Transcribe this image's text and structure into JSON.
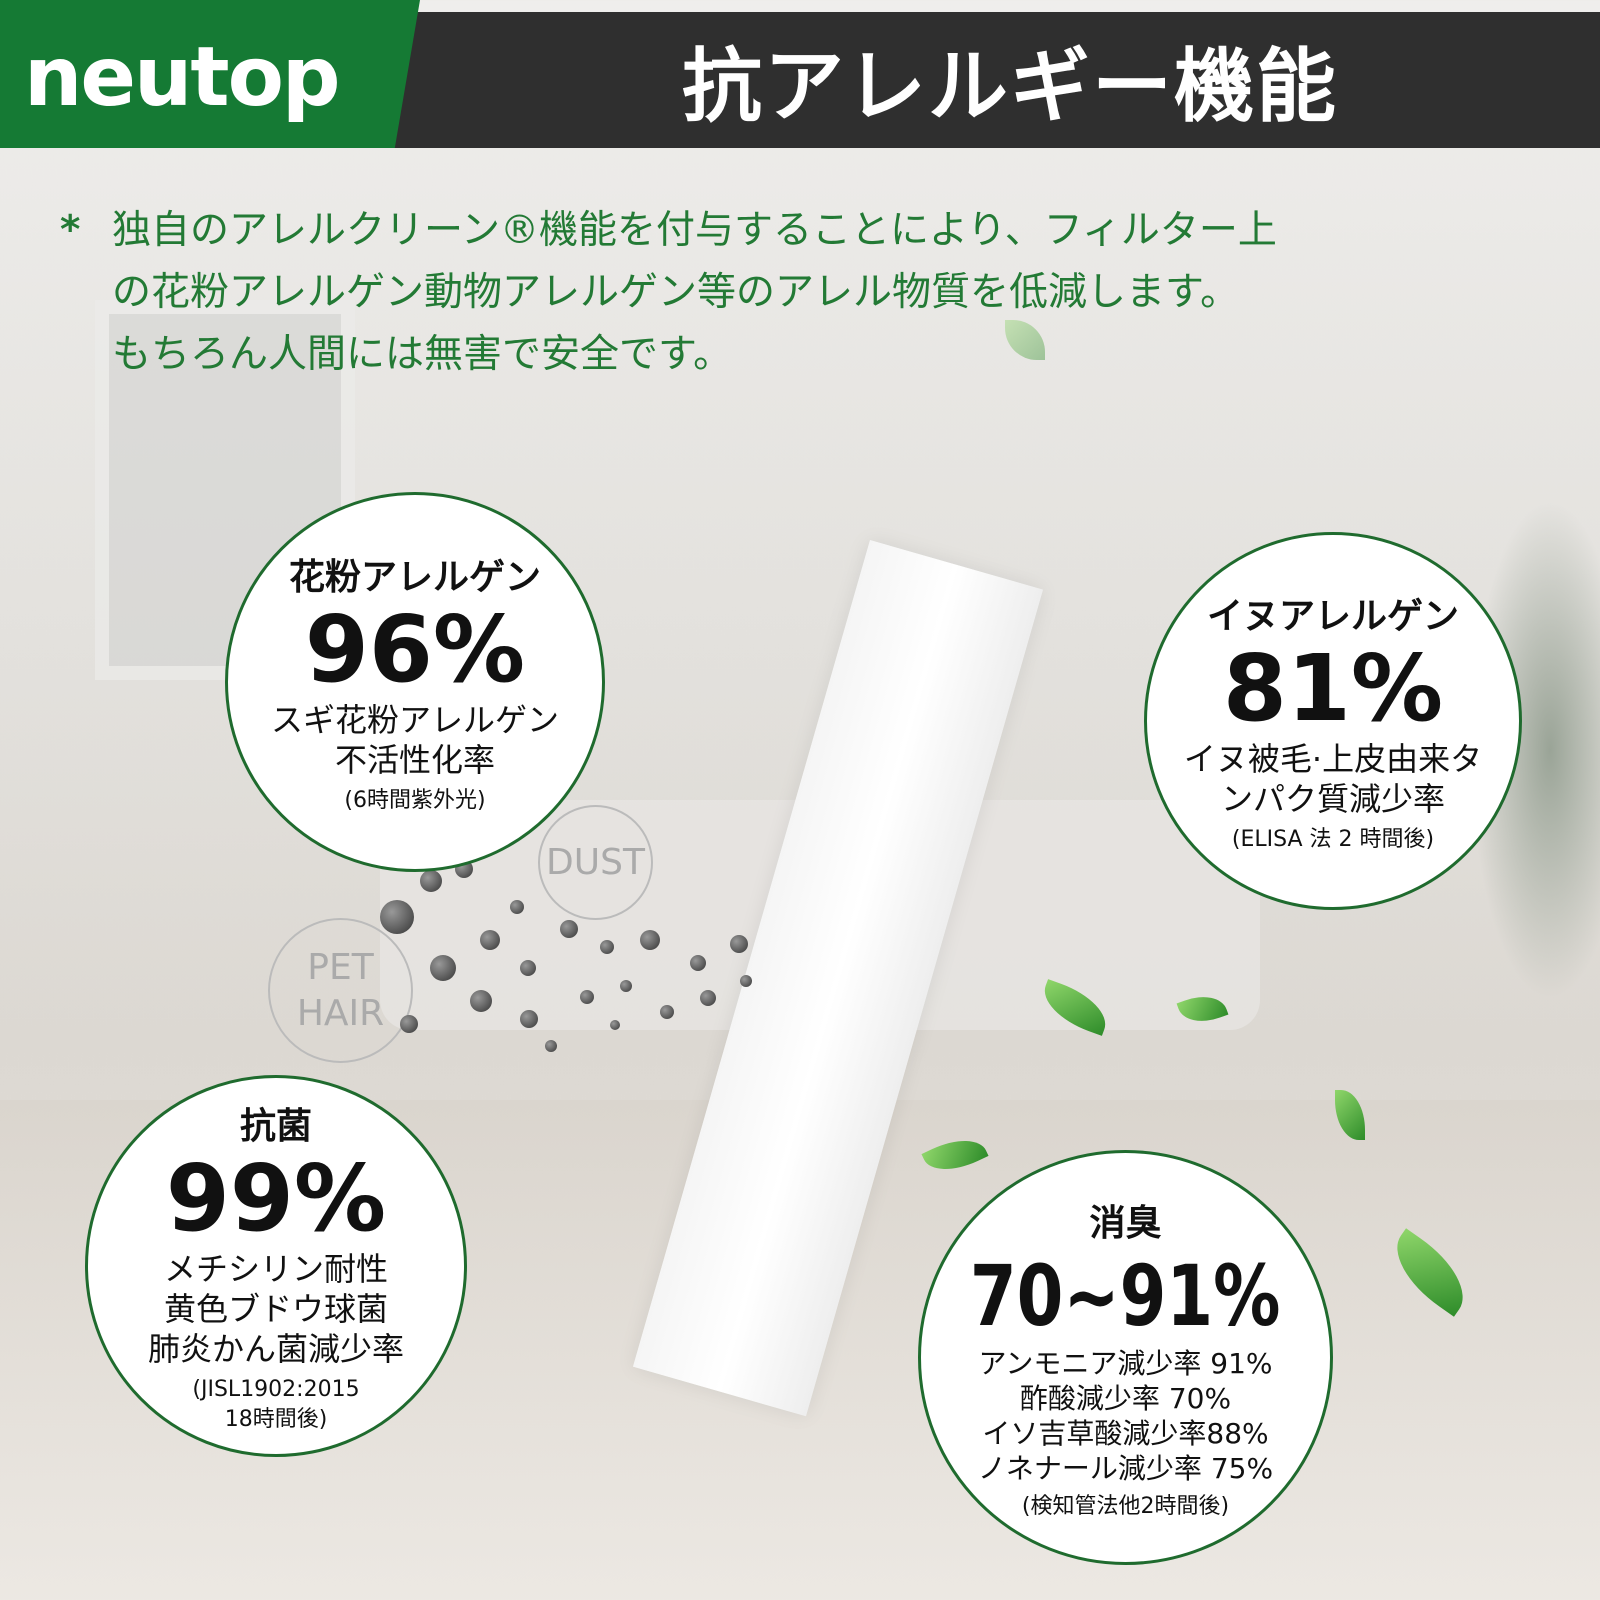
{
  "brand": {
    "logo": "neutop",
    "color": "#157a34"
  },
  "header": {
    "title": "抗アレルギー機能",
    "bar_color": "#2f2f2f"
  },
  "intro": {
    "bullet": "*",
    "lines": [
      "独自のアレルクリーン®機能を付与することにより、フィルター上",
      "の花粉アレルゲン動物アレルゲン等のアレル物質を低減します。",
      "もちろん人間には無害で安全です。"
    ],
    "color": "#237a35"
  },
  "tags": {
    "dust": "DUST",
    "pet_hair": [
      "PET",
      "HAIR"
    ]
  },
  "circles": [
    {
      "heading": "花粉アレルゲン",
      "value": "96%",
      "desc": [
        "スギ花粉アレルゲン",
        "不活性化率"
      ],
      "note": [
        "(6時間紫外光)"
      ]
    },
    {
      "heading": "イヌアレルゲン",
      "value": "81%",
      "desc": [
        "イヌ被毛·上皮由来タ",
        "ンパク質減少率"
      ],
      "note": [
        "(ELISA 法 2 時間後)"
      ]
    },
    {
      "heading": "抗菌",
      "value": "99%",
      "desc": [
        "メチシリン耐性",
        "黄色ブドウ球菌",
        "肺炎かん菌減少率"
      ],
      "note": [
        "(JISL1902:2015",
        "18時間後)"
      ]
    },
    {
      "heading": "消臭",
      "value": "70~91%",
      "desc": [
        "アンモニア減少率 91%",
        "酢酸減少率 70%",
        "イソ吉草酸減少率88%",
        "ノネナール減少率 75%"
      ],
      "note": [
        "(検知管法他2時間後)"
      ]
    }
  ]
}
